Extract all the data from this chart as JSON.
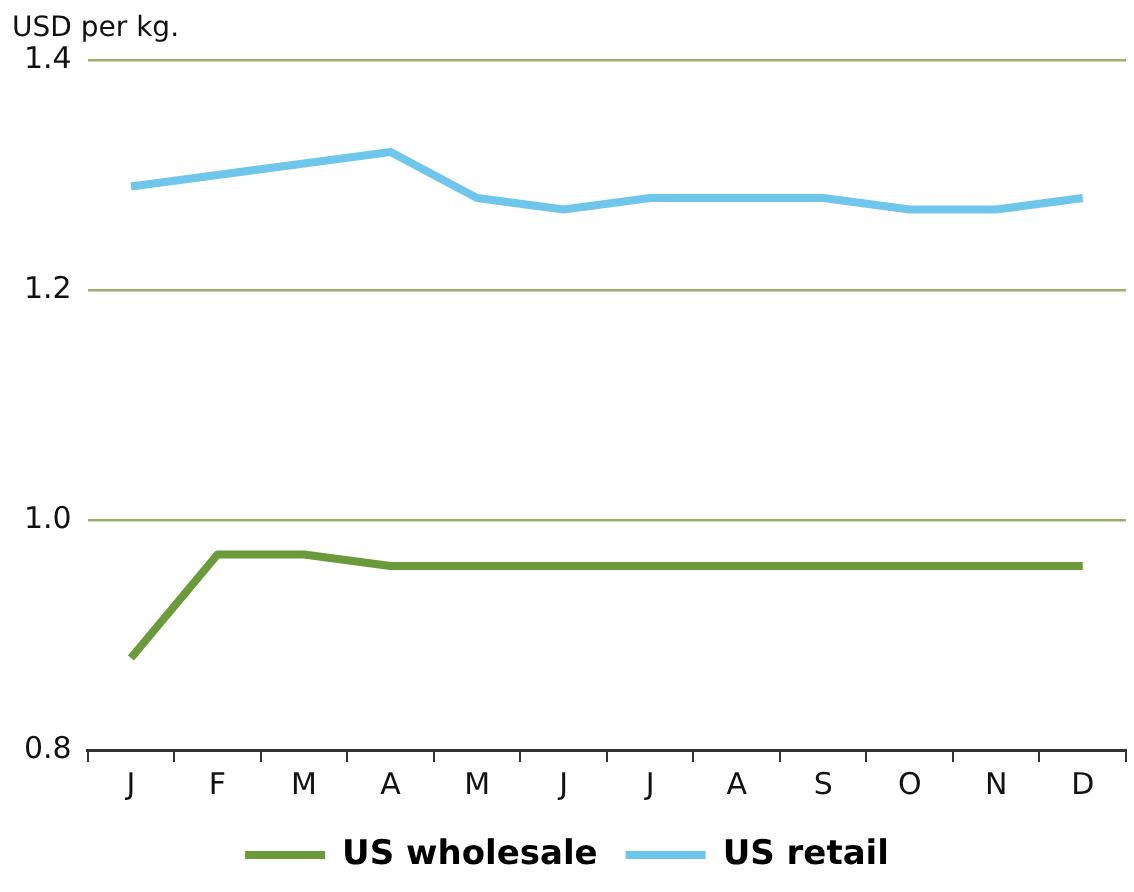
{
  "chart_data": {
    "type": "line",
    "ylabel": "USD per kg.",
    "categories": [
      "J",
      "F",
      "M",
      "A",
      "M",
      "J",
      "J",
      "A",
      "S",
      "O",
      "N",
      "D"
    ],
    "series": [
      {
        "name": "US wholesale",
        "color": "#6a9a3a",
        "values": [
          0.88,
          0.97,
          0.97,
          0.96,
          0.96,
          0.96,
          0.96,
          0.96,
          0.96,
          0.96,
          0.96,
          0.96
        ]
      },
      {
        "name": "US retail",
        "color": "#6ec6ea",
        "values": [
          1.29,
          1.3,
          1.31,
          1.32,
          1.28,
          1.27,
          1.28,
          1.28,
          1.28,
          1.27,
          1.27,
          1.28
        ]
      }
    ],
    "ylim": [
      0.8,
      1.4
    ],
    "yticks": [
      0.8,
      {
        "value": 1,
        "label": "1.0"
      },
      1.2,
      1.4
    ],
    "grid": "y",
    "legend": "bottom",
    "marker": "none",
    "line_style": "solid"
  }
}
